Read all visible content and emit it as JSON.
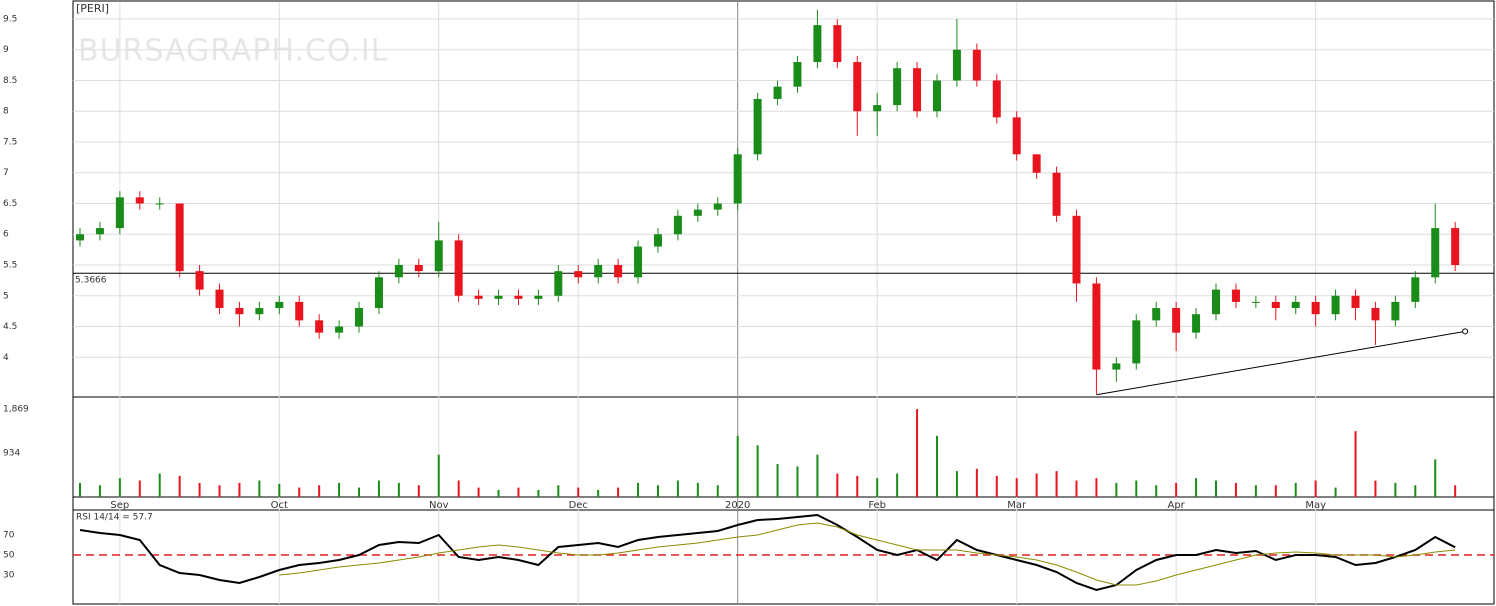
{
  "watermark": "BURSAGRAPH.CO.IL",
  "chart_data": [
    {
      "type": "candlestick",
      "title": "[PERI]",
      "categories": [
        null,
        null,
        "Sep",
        null,
        null,
        null,
        null,
        null,
        null,
        null,
        "Oct",
        null,
        null,
        null,
        null,
        null,
        null,
        null,
        "Nov",
        null,
        null,
        null,
        null,
        null,
        null,
        "Dec",
        null,
        null,
        null,
        null,
        null,
        null,
        null,
        "2020",
        null,
        null,
        null,
        null,
        null,
        null,
        "Feb",
        null,
        null,
        null,
        null,
        null,
        null,
        "Mar",
        null,
        null,
        null,
        null,
        null,
        null,
        null,
        "Apr",
        null,
        null,
        null,
        null,
        null,
        null,
        "May",
        null,
        null,
        null,
        null,
        null,
        null,
        null
      ],
      "open": [
        5.9,
        6.0,
        6.1,
        6.6,
        6.5,
        6.5,
        5.4,
        5.1,
        4.8,
        4.7,
        4.8,
        4.9,
        4.6,
        4.4,
        4.5,
        4.8,
        5.3,
        5.5,
        5.4,
        5.9,
        5.0,
        4.95,
        5.0,
        4.95,
        5.0,
        5.4,
        5.3,
        5.5,
        5.3,
        5.8,
        6.0,
        6.3,
        6.4,
        6.5,
        7.3,
        8.2,
        8.4,
        8.8,
        9.4,
        8.8,
        8.0,
        8.1,
        8.7,
        8.0,
        8.5,
        9.0,
        8.5,
        7.9,
        7.3,
        7.0,
        6.3,
        5.2,
        3.8,
        3.9,
        4.6,
        4.8,
        4.4,
        4.7,
        5.1,
        4.9,
        4.9,
        4.8,
        4.9,
        4.7,
        5.0,
        4.8,
        4.6,
        4.9,
        5.3,
        6.1
      ],
      "high": [
        6.1,
        6.2,
        6.7,
        6.7,
        6.6,
        6.5,
        5.5,
        5.2,
        4.9,
        4.9,
        5.0,
        5.0,
        4.7,
        4.6,
        4.9,
        5.4,
        5.6,
        5.6,
        6.2,
        6.0,
        5.1,
        5.1,
        5.1,
        5.1,
        5.5,
        5.5,
        5.6,
        5.6,
        5.9,
        6.1,
        6.4,
        6.5,
        6.6,
        7.4,
        8.3,
        8.5,
        8.9,
        9.65,
        9.5,
        8.9,
        8.3,
        8.8,
        8.8,
        8.6,
        9.5,
        9.1,
        8.6,
        8.0,
        7.3,
        7.1,
        6.4,
        5.3,
        4.0,
        4.7,
        4.9,
        4.9,
        4.8,
        5.2,
        5.2,
        5.0,
        5.0,
        5.0,
        5.0,
        5.1,
        5.1,
        4.9,
        5.0,
        5.4,
        6.5,
        6.2
      ],
      "low": [
        5.8,
        5.9,
        6.0,
        6.4,
        6.4,
        5.3,
        5.0,
        4.7,
        4.5,
        4.6,
        4.7,
        4.5,
        4.3,
        4.3,
        4.4,
        4.7,
        5.2,
        5.3,
        5.3,
        4.9,
        4.85,
        4.85,
        4.85,
        4.85,
        4.9,
        5.2,
        5.2,
        5.2,
        5.2,
        5.7,
        5.9,
        6.2,
        6.3,
        6.4,
        7.2,
        8.1,
        8.3,
        8.7,
        8.7,
        7.6,
        7.6,
        8.0,
        7.9,
        7.9,
        8.4,
        8.4,
        7.8,
        7.2,
        6.9,
        6.2,
        4.9,
        3.4,
        3.6,
        3.8,
        4.5,
        4.1,
        4.3,
        4.6,
        4.8,
        4.8,
        4.6,
        4.7,
        4.5,
        4.6,
        4.6,
        4.2,
        4.5,
        4.8,
        5.2,
        5.4
      ],
      "close": [
        6.0,
        6.1,
        6.6,
        6.5,
        6.5,
        5.4,
        5.1,
        4.8,
        4.7,
        4.8,
        4.9,
        4.6,
        4.4,
        4.5,
        4.8,
        5.3,
        5.5,
        5.4,
        5.9,
        5.0,
        4.95,
        5.0,
        4.95,
        5.0,
        5.4,
        5.3,
        5.5,
        5.3,
        5.8,
        6.0,
        6.3,
        6.4,
        6.5,
        7.3,
        8.2,
        8.4,
        8.8,
        9.4,
        8.8,
        8.0,
        8.1,
        8.7,
        8.0,
        8.5,
        9.0,
        8.5,
        7.9,
        7.3,
        7.0,
        6.3,
        5.2,
        3.8,
        3.9,
        4.6,
        4.8,
        4.4,
        4.7,
        5.1,
        4.9,
        4.9,
        4.8,
        4.9,
        4.7,
        5.0,
        4.8,
        4.6,
        4.9,
        5.3,
        6.1,
        5.5
      ],
      "up_color": "#1a8c1a",
      "down_color": "#e8141e",
      "ylim": [
        3.37,
        9.76
      ],
      "yticks": [
        4,
        4.5,
        5,
        5.5,
        6,
        6.5,
        7,
        7.5,
        8,
        8.5,
        9,
        9.5
      ],
      "grid": true,
      "level": {
        "value": 5.3666,
        "label": "5.3666"
      },
      "trendline": {
        "x": [
          51,
          69.5
        ],
        "y": [
          3.39,
          4.42
        ]
      }
    },
    {
      "type": "bar",
      "values": [
        300,
        250,
        400,
        350,
        500,
        450,
        300,
        250,
        300,
        350,
        280,
        200,
        250,
        300,
        200,
        350,
        300,
        250,
        900,
        350,
        200,
        150,
        200,
        150,
        250,
        200,
        150,
        200,
        300,
        250,
        350,
        300,
        250,
        1300,
        1100,
        700,
        650,
        900,
        500,
        450,
        400,
        500,
        1869,
        1300,
        550,
        600,
        450,
        400,
        500,
        550,
        350,
        400,
        300,
        350,
        250,
        300,
        400,
        350,
        300,
        250,
        250,
        300,
        350,
        200,
        1400,
        350,
        300,
        250,
        800,
        250
      ],
      "ylim": [
        0,
        2126
      ],
      "yticks": [
        {
          "value": 1869,
          "label": "1,869"
        },
        934
      ]
    },
    {
      "type": "line",
      "label": "RSI 14/14 = 57.7",
      "series": [
        {
          "color": "#000000",
          "values": [
            75,
            72,
            70,
            65,
            40,
            32,
            30,
            25,
            22,
            28,
            35,
            40,
            42,
            45,
            50,
            60,
            63,
            62,
            70,
            48,
            45,
            48,
            45,
            40,
            58,
            60,
            62,
            58,
            65,
            68,
            70,
            72,
            74,
            80,
            85,
            86,
            88,
            90,
            80,
            68,
            55,
            50,
            55,
            45,
            65,
            55,
            50,
            45,
            40,
            33,
            22,
            15,
            20,
            35,
            45,
            50,
            50,
            55,
            52,
            54,
            45,
            50,
            50,
            48,
            40,
            42,
            48,
            55,
            68,
            57.7
          ]
        },
        {
          "color": "#8b8b00",
          "values": [
            null,
            null,
            null,
            null,
            null,
            null,
            null,
            null,
            null,
            null,
            30,
            32,
            35,
            38,
            40,
            42,
            45,
            48,
            52,
            55,
            58,
            60,
            58,
            55,
            52,
            50,
            50,
            52,
            55,
            58,
            60,
            62,
            65,
            68,
            70,
            75,
            80,
            82,
            78,
            70,
            65,
            60,
            55,
            55,
            55,
            52,
            50,
            48,
            45,
            40,
            33,
            25,
            20,
            20,
            24,
            30,
            35,
            40,
            45,
            50,
            52,
            53,
            52,
            50,
            50,
            50,
            48,
            50,
            53,
            55
          ]
        }
      ],
      "ylim": [
        1,
        95
      ],
      "yticks": [
        30,
        50,
        70
      ],
      "reference": 50,
      "reference_color": "#e02020"
    }
  ]
}
